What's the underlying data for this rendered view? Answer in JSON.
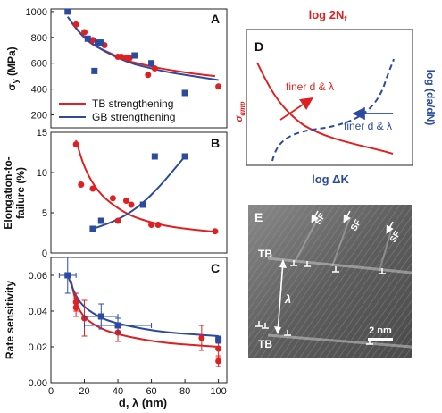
{
  "chart_data": [
    {
      "panel": "A",
      "type": "scatter",
      "ylabel": "σ_y (MPa)",
      "ylabel_main": "σ",
      "ylabel_sub": "y",
      "ylabel_unit": " (MPa)",
      "xlim": [
        0,
        105
      ],
      "ylim": [
        100,
        1020
      ],
      "yticks": [
        200,
        400,
        600,
        800,
        1000
      ],
      "legend": {
        "placement": "bottom-left",
        "entries": [
          {
            "label": "TB strengthening",
            "color": "#e02020"
          },
          {
            "label": "GB strengthening",
            "color": "#2b4aa0"
          }
        ]
      },
      "series": [
        {
          "name": "TB strengthening",
          "color": "#e02020",
          "marker": "circle",
          "x": [
            15,
            20,
            25,
            32,
            40,
            42,
            45,
            47,
            50,
            58,
            62,
            100
          ],
          "y": [
            900,
            840,
            780,
            740,
            650,
            650,
            640,
            640,
            660,
            510,
            560,
            420
          ],
          "fit_x": [
            12,
            18,
            25,
            35,
            45,
            55,
            65,
            75,
            85,
            98
          ],
          "fit_y": [
            920,
            820,
            740,
            680,
            620,
            590,
            560,
            540,
            520,
            500
          ]
        },
        {
          "name": "GB strengthening",
          "color": "#2b4aa0",
          "marker": "square",
          "x": [
            10,
            22,
            26,
            28,
            30,
            50,
            60,
            80
          ],
          "y": [
            1000,
            790,
            540,
            760,
            760,
            660,
            600,
            370
          ],
          "fit_x": [
            10,
            15,
            20,
            28,
            40,
            50,
            60,
            70,
            80,
            100
          ],
          "fit_y": [
            960,
            870,
            800,
            720,
            640,
            590,
            560,
            530,
            510,
            470
          ]
        }
      ]
    },
    {
      "panel": "B",
      "type": "scatter",
      "ylabel_line1": "Elongation-to-",
      "ylabel_line2": "failure (%)",
      "xlim": [
        0,
        105
      ],
      "ylim": [
        0,
        15
      ],
      "yticks": [
        0,
        5,
        10,
        15
      ],
      "series": [
        {
          "name": "TB strengthening",
          "color": "#e02020",
          "marker": "circle",
          "x": [
            15,
            18,
            25,
            37,
            40,
            45,
            48,
            60,
            64,
            98
          ],
          "y": [
            13.5,
            8.5,
            8.0,
            6.8,
            4.0,
            6.5,
            6.0,
            3.5,
            3.5,
            2.7
          ],
          "fit_x": [
            15,
            20,
            28,
            38,
            48,
            58,
            70,
            85,
            100
          ],
          "fit_y": [
            14,
            10.5,
            7.6,
            5.8,
            4.6,
            3.9,
            3.3,
            2.9,
            2.6
          ]
        },
        {
          "name": "GB strengthening",
          "color": "#2b4aa0",
          "marker": "square",
          "x": [
            25,
            30,
            55,
            62,
            80
          ],
          "y": [
            3.0,
            4.0,
            6.0,
            12.0,
            12.0
          ],
          "fit_x": [
            25,
            35,
            45,
            55,
            65,
            72,
            80
          ],
          "fit_y": [
            3.0,
            3.7,
            4.7,
            6.2,
            8.3,
            10.0,
            12.0
          ]
        }
      ]
    },
    {
      "panel": "C",
      "type": "scatter",
      "ylabel": "Rate sensitivity",
      "xlabel": "d, λ (nm)",
      "xlim": [
        0,
        105
      ],
      "ylim": [
        0,
        0.07
      ],
      "yticks": [
        0.0,
        0.02,
        0.04,
        0.06
      ],
      "xticks": [
        0,
        20,
        40,
        60,
        80,
        100
      ],
      "series": [
        {
          "name": "TB strengthening",
          "color": "#e02020",
          "marker": "circle",
          "x": [
            15,
            15,
            20,
            40,
            90,
            100,
            100
          ],
          "y": [
            0.045,
            0.042,
            0.036,
            0.028,
            0.025,
            0.019,
            0.012
          ],
          "yerr": [
            0.005,
            0.005,
            0.01,
            0.005,
            0.007,
            0.005,
            0.003
          ],
          "fit_x": [
            12,
            15,
            20,
            30,
            40,
            55,
            70,
            85,
            100
          ],
          "fit_y": [
            0.057,
            0.044,
            0.036,
            0.03,
            0.027,
            0.024,
            0.022,
            0.021,
            0.02
          ]
        },
        {
          "name": "GB strengthening",
          "color": "#2b4aa0",
          "marker": "square",
          "x": [
            10,
            30,
            40,
            100
          ],
          "y": [
            0.06,
            0.037,
            0.032,
            0.024
          ],
          "yerr": [
            0.01,
            0.007,
            0.004,
            0.002
          ],
          "xerr": [
            5,
            10,
            20,
            0
          ],
          "fit_x": [
            10,
            15,
            20,
            30,
            40,
            55,
            70,
            85,
            100
          ],
          "fit_y": [
            0.06,
            0.048,
            0.042,
            0.036,
            0.033,
            0.03,
            0.028,
            0.027,
            0.026
          ]
        }
      ]
    },
    {
      "panel": "D",
      "type": "line",
      "title": "log 2N",
      "title_sub": "f",
      "xlabel": "log  ΔK",
      "ylabel_left": "σ",
      "ylabel_left_sub": "amp",
      "ylabel_right": "log (da/dN)",
      "red_annotation": "finer d & λ",
      "blue_annotation": "finer d & λ",
      "series": [
        {
          "name": "σ_amp vs log 2N_f",
          "color": "#e02020",
          "style": "solid"
        },
        {
          "name": "log (da/dN) vs log ΔK",
          "color": "#2b4aa0",
          "style": "dashed"
        }
      ]
    }
  ],
  "panel_labels": {
    "a": "A",
    "b": "B",
    "c": "C",
    "d": "D",
    "e": "E"
  },
  "image_e": {
    "sf_labels": [
      "SF",
      "SF",
      "SF"
    ],
    "tb_labels": [
      "TB",
      "TB"
    ],
    "lambda": "λ",
    "scale_bar": "2 nm"
  }
}
